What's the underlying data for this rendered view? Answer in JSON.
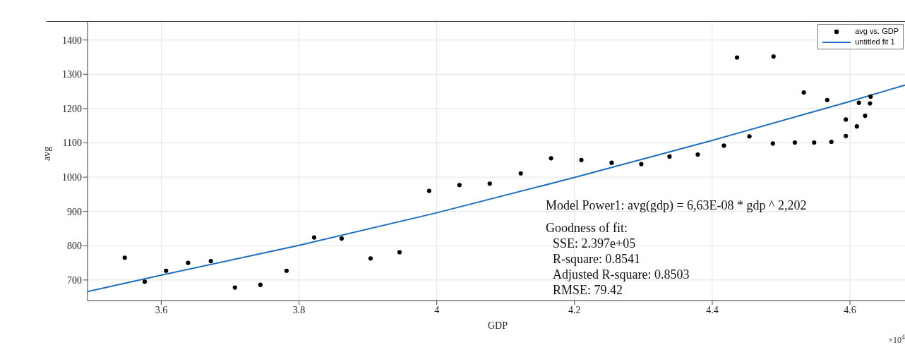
{
  "chart_data": {
    "type": "scatter",
    "xlabel": "GDP",
    "ylabel": "avg",
    "xlim": [
      3.493,
      4.684
    ],
    "ylim": [
      640,
      1455
    ],
    "xticks": [
      3.6,
      3.8,
      4,
      4.2,
      4.4,
      4.6
    ],
    "yticks": [
      700,
      800,
      900,
      1000,
      1100,
      1200,
      1300,
      1400
    ],
    "grid": true,
    "legend": "top right",
    "annotations": [
      "Model Power1: avg(gdp) = 6,63E-08 * gdp ^ 2,202",
      "Goodness of fit:",
      "SSE: 2.397e+05",
      "R-square: 0.8541",
      "Adjusted R-square: 0.8503",
      "RMSE: 79.42",
      "×10$^{4}$"
    ],
    "series": [
      {
        "name": "avg vs. GDP",
        "marker": "circle",
        "color": "#000000",
        "x": [
          3.547,
          3.576,
          3.607,
          3.639,
          3.672,
          3.707,
          3.744,
          3.782,
          3.822,
          3.862,
          3.904,
          3.946,
          3.989,
          4.033,
          4.077,
          4.122,
          4.166,
          4.21,
          4.254,
          4.297,
          4.338,
          4.379,
          4.417,
          4.436,
          4.454,
          4.488,
          4.489,
          4.52,
          4.533,
          4.548,
          4.567,
          4.573,
          4.594,
          4.594,
          4.61,
          4.613,
          4.622,
          4.629,
          4.63
        ],
        "values": [
          765,
          695,
          727,
          750,
          755,
          678,
          686,
          727,
          824,
          821,
          763,
          781,
          960,
          977,
          981,
          1011,
          1055,
          1050,
          1042,
          1038,
          1060,
          1066,
          1092,
          1349,
          1119,
          1098,
          1352,
          1101,
          1247,
          1101,
          1225,
          1103,
          1120,
          1168,
          1148,
          1217,
          1179,
          1215,
          1235
        ]
      },
      {
        "name": "untitled fit 1",
        "type": "line",
        "marker": "none",
        "line_style": "solid",
        "color": "#1f6fc0",
        "x": [
          3.493,
          3.6,
          3.8,
          4.0,
          4.2,
          4.4,
          4.6,
          4.684
        ],
        "values": [
          666,
          714,
          801,
          896,
          999,
          1107,
          1221,
          1271
        ]
      }
    ]
  }
}
